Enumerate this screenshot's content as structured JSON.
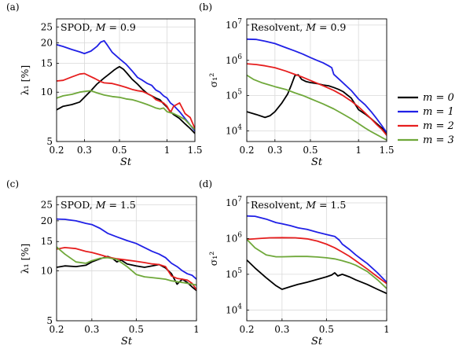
{
  "legend": {
    "placement": "right",
    "entries": [
      {
        "label": "m = 0",
        "color": "#000000"
      },
      {
        "label": "m = 1",
        "color": "#2020e6"
      },
      {
        "label": "m = 2",
        "color": "#e61e1e"
      },
      {
        "label": "m = 3",
        "color": "#6fa83a"
      }
    ]
  },
  "chart_data": [
    {
      "type": "line",
      "panel_label": "(a)",
      "title": "SPOD, M = 0.9",
      "xlabel": "St",
      "ylabel": "λ₁ [%]",
      "xscale": "log",
      "yscale": "log",
      "xlim": [
        0.2,
        1.5
      ],
      "ylim": [
        5,
        28
      ],
      "xticks": [
        0.2,
        0.3,
        0.5,
        1,
        1.5
      ],
      "xticklabels": [
        "0.2",
        "0.3",
        "0.5",
        "1",
        "1.5"
      ],
      "yticks": [
        5,
        10,
        15,
        20,
        25
      ],
      "yticklabels": [
        "5",
        "10",
        "15",
        "20",
        "25"
      ],
      "grid": true,
      "series": [
        {
          "name": "m = 0",
          "color": "#000000",
          "x": [
            0.2,
            0.22,
            0.25,
            0.28,
            0.3,
            0.33,
            0.36,
            0.4,
            0.43,
            0.46,
            0.48,
            0.5,
            0.53,
            0.56,
            0.6,
            0.65,
            0.7,
            0.75,
            0.8,
            0.85,
            0.9,
            0.95,
            1.0,
            1.05,
            1.1,
            1.2,
            1.3,
            1.4,
            1.5
          ],
          "y": [
            7.8,
            8.2,
            8.4,
            8.7,
            9.3,
            10.2,
            11.2,
            12.2,
            12.9,
            13.6,
            14.0,
            14.3,
            13.8,
            13.0,
            12.0,
            11.2,
            10.4,
            9.8,
            9.5,
            9.2,
            9.0,
            8.5,
            8.1,
            7.6,
            7.3,
            6.9,
            6.4,
            6.0,
            5.6
          ]
        },
        {
          "name": "m = 1",
          "color": "#2020e6",
          "x": [
            0.2,
            0.22,
            0.25,
            0.28,
            0.3,
            0.33,
            0.36,
            0.38,
            0.4,
            0.42,
            0.45,
            0.5,
            0.55,
            0.6,
            0.65,
            0.7,
            0.75,
            0.8,
            0.85,
            0.9,
            0.95,
            1.0,
            1.05,
            1.1,
            1.2,
            1.3,
            1.4,
            1.5
          ],
          "y": [
            19.5,
            19.0,
            18.2,
            17.6,
            17.2,
            17.8,
            19.0,
            20.2,
            20.6,
            19.3,
            17.5,
            16.0,
            14.8,
            13.5,
            12.3,
            11.8,
            11.3,
            11.0,
            10.3,
            10.0,
            9.5,
            9.2,
            8.6,
            8.3,
            7.6,
            6.9,
            6.3,
            5.8
          ]
        },
        {
          "name": "m = 2",
          "color": "#e61e1e",
          "x": [
            0.2,
            0.22,
            0.25,
            0.28,
            0.3,
            0.32,
            0.35,
            0.38,
            0.4,
            0.45,
            0.5,
            0.55,
            0.6,
            0.65,
            0.7,
            0.75,
            0.8,
            0.85,
            0.9,
            0.95,
            1.0,
            1.05,
            1.1,
            1.2,
            1.3,
            1.4,
            1.5
          ],
          "y": [
            11.7,
            11.8,
            12.4,
            12.9,
            13.0,
            12.6,
            12.1,
            11.6,
            11.4,
            11.3,
            11.0,
            10.7,
            10.4,
            10.2,
            10.1,
            9.8,
            9.5,
            9.0,
            8.8,
            8.6,
            8.2,
            7.5,
            8.2,
            8.6,
            7.4,
            7.0,
            6.0
          ]
        },
        {
          "name": "m = 3",
          "color": "#6fa83a",
          "x": [
            0.2,
            0.22,
            0.25,
            0.28,
            0.3,
            0.33,
            0.36,
            0.4,
            0.45,
            0.5,
            0.55,
            0.6,
            0.65,
            0.7,
            0.75,
            0.8,
            0.85,
            0.9,
            0.95,
            1.0,
            1.1,
            1.2,
            1.3,
            1.4,
            1.5
          ],
          "y": [
            9.2,
            9.5,
            9.7,
            10.0,
            10.1,
            10.2,
            9.9,
            9.6,
            9.4,
            9.3,
            9.1,
            9.0,
            8.8,
            8.6,
            8.4,
            8.2,
            8.0,
            7.9,
            8.0,
            7.6,
            7.4,
            7.1,
            6.8,
            6.3,
            5.9
          ]
        }
      ]
    },
    {
      "type": "line",
      "panel_label": "(b)",
      "title": "Resolvent, M = 0.9",
      "xlabel": "St",
      "ylabel": "σ₁²",
      "xscale": "log",
      "yscale": "log",
      "xlim": [
        0.2,
        1.5
      ],
      "ylim": [
        5000,
        15000000
      ],
      "xticks": [
        0.2,
        0.3,
        0.5,
        1,
        1.5
      ],
      "xticklabels": [
        "0.2",
        "0.3",
        "0.5",
        "1",
        "1.5"
      ],
      "yticks": [
        10000,
        100000,
        1000000,
        10000000
      ],
      "yticklabels": [
        "10^4",
        "10^5",
        "10^6",
        "10^7"
      ],
      "grid": true,
      "series": [
        {
          "name": "m = 0",
          "color": "#000000",
          "x": [
            0.2,
            0.23,
            0.26,
            0.28,
            0.3,
            0.33,
            0.36,
            0.38,
            0.4,
            0.42,
            0.44,
            0.47,
            0.5,
            0.55,
            0.6,
            0.65,
            0.7,
            0.75,
            0.8,
            0.9,
            1.0,
            1.1,
            1.2,
            1.3,
            1.4,
            1.5
          ],
          "y": [
            35000,
            29000,
            24000,
            27000,
            35000,
            60000,
            110000,
            200000,
            370000,
            390000,
            290000,
            250000,
            235000,
            220000,
            200000,
            190000,
            170000,
            150000,
            130000,
            85000,
            40000,
            30000,
            22000,
            16000,
            12000,
            8500
          ]
        },
        {
          "name": "m = 1",
          "color": "#2020e6",
          "x": [
            0.2,
            0.23,
            0.26,
            0.3,
            0.35,
            0.4,
            0.45,
            0.5,
            0.55,
            0.6,
            0.65,
            0.68,
            0.7,
            0.75,
            0.8,
            0.9,
            1.0,
            1.1,
            1.2,
            1.3,
            1.4,
            1.5
          ],
          "y": [
            4000000,
            3900000,
            3500000,
            3000000,
            2300000,
            1850000,
            1500000,
            1200000,
            1000000,
            850000,
            700000,
            620000,
            400000,
            300000,
            230000,
            140000,
            80000,
            55000,
            35000,
            22000,
            14000,
            9000
          ]
        },
        {
          "name": "m = 2",
          "color": "#e61e1e",
          "x": [
            0.2,
            0.23,
            0.26,
            0.3,
            0.35,
            0.4,
            0.45,
            0.5,
            0.6,
            0.7,
            0.8,
            0.9,
            1.0,
            1.1,
            1.2,
            1.3,
            1.4,
            1.5
          ],
          "y": [
            800000,
            760000,
            700000,
            620000,
            500000,
            400000,
            330000,
            270000,
            190000,
            140000,
            100000,
            70000,
            48000,
            32000,
            22000,
            15000,
            11000,
            7500
          ]
        },
        {
          "name": "m = 3",
          "color": "#6fa83a",
          "x": [
            0.2,
            0.22,
            0.25,
            0.3,
            0.35,
            0.4,
            0.45,
            0.5,
            0.6,
            0.7,
            0.8,
            0.9,
            1.0,
            1.1,
            1.2,
            1.3,
            1.4,
            1.5
          ],
          "y": [
            380000,
            290000,
            230000,
            180000,
            150000,
            120000,
            100000,
            82000,
            58000,
            42000,
            30000,
            22000,
            16000,
            12000,
            9500,
            7800,
            6500,
            5500
          ]
        }
      ]
    },
    {
      "type": "line",
      "panel_label": "(c)",
      "title": "SPOD, M = 1.5",
      "xlabel": "St",
      "ylabel": "λ₁ [%]",
      "xscale": "log",
      "yscale": "log",
      "xlim": [
        0.2,
        1.0
      ],
      "ylim": [
        5,
        28
      ],
      "xticks": [
        0.2,
        0.3,
        0.5,
        1
      ],
      "xticklabels": [
        "0.2",
        "0.3",
        "0.5",
        "1"
      ],
      "yticks": [
        5,
        10,
        15,
        20,
        25
      ],
      "yticklabels": [
        "5",
        "10",
        "15",
        "20",
        "25"
      ],
      "grid": true,
      "series": [
        {
          "name": "m = 0",
          "color": "#000000",
          "x": [
            0.2,
            0.22,
            0.25,
            0.28,
            0.3,
            0.33,
            0.36,
            0.38,
            0.4,
            0.42,
            0.45,
            0.5,
            0.55,
            0.6,
            0.65,
            0.7,
            0.75,
            0.8,
            0.85,
            0.9,
            0.95,
            1.0
          ],
          "y": [
            10.5,
            10.7,
            10.6,
            10.8,
            11.3,
            11.8,
            12.2,
            11.9,
            11.3,
            11.6,
            11.0,
            10.7,
            10.5,
            10.7,
            10.9,
            10.4,
            9.6,
            8.3,
            8.9,
            8.5,
            8.0,
            7.6
          ]
        },
        {
          "name": "m = 1",
          "color": "#2020e6",
          "x": [
            0.2,
            0.22,
            0.25,
            0.28,
            0.3,
            0.33,
            0.36,
            0.4,
            0.45,
            0.5,
            0.55,
            0.6,
            0.65,
            0.7,
            0.75,
            0.8,
            0.85,
            0.9,
            0.95,
            1.0
          ],
          "y": [
            20.5,
            20.4,
            20.0,
            19.3,
            19.0,
            18.0,
            16.8,
            16.0,
            15.2,
            14.6,
            13.8,
            13.1,
            12.6,
            12.0,
            11.1,
            10.6,
            10.0,
            9.6,
            9.4,
            8.9
          ]
        },
        {
          "name": "m = 2",
          "color": "#e61e1e",
          "x": [
            0.2,
            0.22,
            0.25,
            0.28,
            0.3,
            0.33,
            0.36,
            0.4,
            0.45,
            0.5,
            0.55,
            0.6,
            0.65,
            0.7,
            0.75,
            0.8,
            0.85,
            0.9,
            0.95,
            1.0
          ],
          "y": [
            13.5,
            13.8,
            13.6,
            13.1,
            12.9,
            12.5,
            12.1,
            11.8,
            11.6,
            11.4,
            11.2,
            11.0,
            10.9,
            10.6,
            9.3,
            9.0,
            8.9,
            8.8,
            8.4,
            7.7
          ]
        },
        {
          "name": "m = 3",
          "color": "#6fa83a",
          "x": [
            0.2,
            0.22,
            0.25,
            0.28,
            0.3,
            0.33,
            0.36,
            0.4,
            0.45,
            0.5,
            0.55,
            0.6,
            0.65,
            0.7,
            0.75,
            0.8,
            0.85,
            0.9,
            0.95,
            1.0
          ],
          "y": [
            13.9,
            12.6,
            11.3,
            11.1,
            11.5,
            11.9,
            12.0,
            11.7,
            10.6,
            9.5,
            9.2,
            9.1,
            9.0,
            8.9,
            8.7,
            8.6,
            8.5,
            8.4,
            8.3,
            8.2
          ]
        }
      ]
    },
    {
      "type": "line",
      "panel_label": "(d)",
      "title": "Resolvent, M = 1.5",
      "xlabel": "St",
      "ylabel": "σ₁²",
      "xscale": "log",
      "yscale": "log",
      "xlim": [
        0.2,
        1.0
      ],
      "ylim": [
        5000,
        15000000
      ],
      "xticks": [
        0.2,
        0.3,
        0.5,
        1
      ],
      "xticklabels": [
        "0.2",
        "0.3",
        "0.5",
        "1"
      ],
      "yticks": [
        10000,
        100000,
        1000000,
        10000000
      ],
      "yticklabels": [
        "10^4",
        "10^5",
        "10^6",
        "10^7"
      ],
      "grid": true,
      "series": [
        {
          "name": "m = 0",
          "color": "#000000",
          "x": [
            0.2,
            0.22,
            0.25,
            0.28,
            0.3,
            0.33,
            0.36,
            0.4,
            0.45,
            0.5,
            0.53,
            0.55,
            0.57,
            0.6,
            0.65,
            0.7,
            0.8,
            0.9,
            1.0
          ],
          "y": [
            250000,
            150000,
            80000,
            48000,
            38000,
            45000,
            52000,
            60000,
            72000,
            85000,
            95000,
            110000,
            90000,
            100000,
            85000,
            70000,
            52000,
            38000,
            29000
          ]
        },
        {
          "name": "m = 1",
          "color": "#2020e6",
          "x": [
            0.2,
            0.22,
            0.25,
            0.28,
            0.3,
            0.33,
            0.36,
            0.4,
            0.45,
            0.5,
            0.55,
            0.58,
            0.6,
            0.65,
            0.7,
            0.75,
            0.8,
            0.9,
            1.0
          ],
          "y": [
            4300000,
            4200000,
            3500000,
            2800000,
            2600000,
            2300000,
            2000000,
            1800000,
            1500000,
            1300000,
            1150000,
            900000,
            700000,
            500000,
            350000,
            260000,
            200000,
            110000,
            60000
          ]
        },
        {
          "name": "m = 2",
          "color": "#e61e1e",
          "x": [
            0.2,
            0.23,
            0.26,
            0.3,
            0.35,
            0.4,
            0.45,
            0.5,
            0.55,
            0.6,
            0.65,
            0.7,
            0.8,
            0.9,
            1.0
          ],
          "y": [
            950000,
            1000000,
            1050000,
            1060000,
            1050000,
            980000,
            850000,
            700000,
            550000,
            420000,
            320000,
            240000,
            140000,
            85000,
            55000
          ]
        },
        {
          "name": "m = 3",
          "color": "#6fa83a",
          "x": [
            0.2,
            0.22,
            0.25,
            0.28,
            0.3,
            0.35,
            0.4,
            0.45,
            0.5,
            0.55,
            0.6,
            0.65,
            0.7,
            0.8,
            0.9,
            1.0
          ],
          "y": [
            950000,
            550000,
            350000,
            310000,
            310000,
            315000,
            315000,
            305000,
            290000,
            270000,
            240000,
            210000,
            180000,
            120000,
            70000,
            40000
          ]
        }
      ]
    }
  ]
}
